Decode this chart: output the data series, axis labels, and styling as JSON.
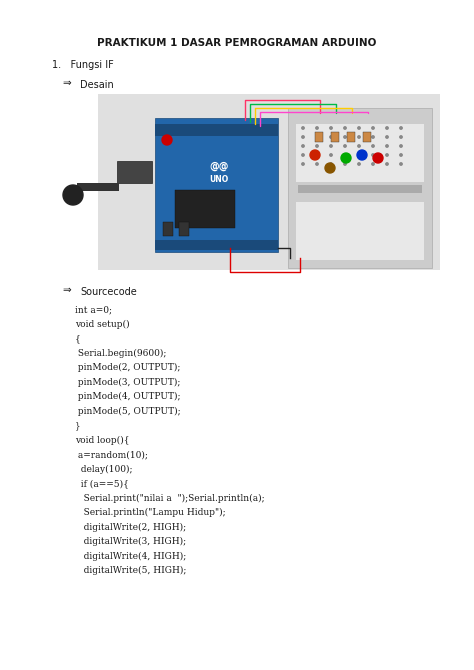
{
  "title": "PRAKTIKUM 1 DASAR PEMROGRAMAN ARDUINO",
  "section1": "1.   Fungsi IF",
  "arrow_char": "⇒",
  "desain_label": "Desain",
  "sourcecode_label": "Sourcecode",
  "code_lines": [
    "int a=0;",
    "void setup()",
    "{",
    " Serial.begin(9600);",
    " pinMode(2, OUTPUT);",
    " pinMode(3, OUTPUT);",
    " pinMode(4, OUTPUT);",
    " pinMode(5, OUTPUT);",
    "}",
    "void loop(){",
    " a=random(10);",
    "  delay(100);",
    "  if (a==5){",
    "   Serial.print(\"nilai a  \");Serial.println(a);",
    "   Serial.println(\"Lampu Hidup\");",
    "   digitalWrite(2, HIGH);",
    "   digitalWrite(3, HIGH);",
    "   digitalWrite(4, HIGH);",
    "   digitalWrite(5, HIGH);"
  ],
  "bg_color": "#ffffff",
  "image_box_color": "#e0e0e0",
  "text_color": "#1a1a1a",
  "title_fontsize": 7.5,
  "body_fontsize": 7.0,
  "code_fontsize": 6.5,
  "arrow_fontsize": 7.5
}
